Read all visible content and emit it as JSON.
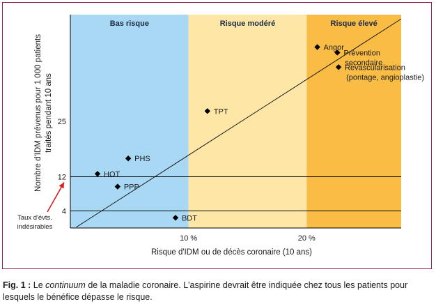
{
  "chart_data": {
    "type": "scatter",
    "ylabel_line1": "Nombre d'IDM prévenus pour 1 000 patients",
    "ylabel_line2": "traités pendant 10 ans",
    "xlabel": "Risque d'IDM ou de décès coronaire (10 ans)",
    "xlim": [
      0,
      28
    ],
    "ylim": [
      0,
      50
    ],
    "x_ticks": [
      {
        "value": 10,
        "label": "10 %"
      },
      {
        "value": 20,
        "label": "20 %"
      }
    ],
    "y_ticks": [
      {
        "value": 4,
        "label": "4"
      },
      {
        "value": 12,
        "label": "12"
      },
      {
        "value": 25,
        "label": "25"
      }
    ],
    "zones": [
      {
        "label": "Bas risque",
        "from": 0,
        "to": 10,
        "color": "#a8d8f4"
      },
      {
        "label": "Risque modéré",
        "from": 10,
        "to": 20,
        "color": "#fde6a6"
      },
      {
        "label": "Risque élevé",
        "from": 20,
        "to": 28,
        "color": "#f9bd46"
      }
    ],
    "horizontal_lines": [
      12,
      4
    ],
    "trend_line": {
      "x": [
        0.5,
        28
      ],
      "y": [
        0.2,
        49
      ]
    },
    "points": [
      {
        "label": "HOT",
        "x": 2.3,
        "y": 12.7
      },
      {
        "label": "PPP",
        "x": 4,
        "y": 9.7
      },
      {
        "label": "PHS",
        "x": 4.9,
        "y": 16.3
      },
      {
        "label": "BDT",
        "x": 8.9,
        "y": 2.4
      },
      {
        "label": "TPT",
        "x": 11.6,
        "y": 27.4
      },
      {
        "label": "Angor",
        "x": 20.9,
        "y": 42.4
      },
      {
        "label": "Prévention\nsecondaire",
        "x": 22.6,
        "y": 41.1
      },
      {
        "label": "Revascularisation\n(pontage, angioplastie)",
        "x": 22.7,
        "y": 37.7
      }
    ],
    "annotation": {
      "text": "Taux d'évts.\nindésirables",
      "target_y": 12
    }
  },
  "caption": {
    "fig": "Fig. 1 :",
    "pre": "Le ",
    "italic": "continuum",
    "post": " de la maladie coronaire. L'aspirine devrait être indiquée chez tous les patients pour lesquels le bénéfice dépasse le risque."
  }
}
